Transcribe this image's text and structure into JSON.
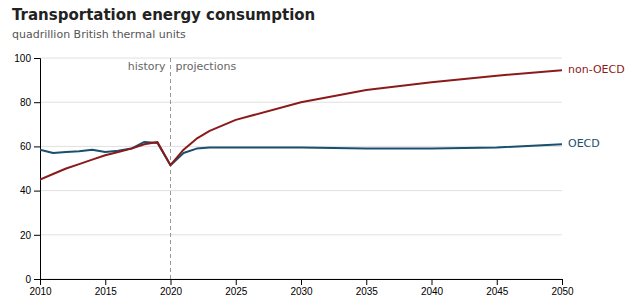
{
  "chart_data": {
    "type": "line",
    "title": "Transportation energy consumption",
    "subtitle": "quadrillion British thermal units",
    "x": [
      2010,
      2011,
      2012,
      2013,
      2014,
      2015,
      2016,
      2017,
      2018,
      2019,
      2020,
      2021,
      2022,
      2023,
      2024,
      2025,
      2030,
      2035,
      2040,
      2045,
      2050
    ],
    "series": [
      {
        "name": "OECD",
        "color": "#1a4f6e",
        "values": [
          58.5,
          57.0,
          57.5,
          57.8,
          58.5,
          57.5,
          58.0,
          59.0,
          62.0,
          61.5,
          51.5,
          57.0,
          59.0,
          59.5,
          59.5,
          59.5,
          59.5,
          59.0,
          59.0,
          59.5,
          61.0
        ]
      },
      {
        "name": "non-OECD",
        "color": "#8b1a1a",
        "values": [
          45.0,
          47.5,
          50.0,
          52.0,
          54.0,
          56.0,
          57.5,
          59.0,
          61.0,
          62.0,
          51.5,
          58.5,
          63.5,
          67.0,
          69.5,
          72.0,
          80.0,
          85.5,
          89.0,
          92.0,
          94.5
        ]
      }
    ],
    "xlim": [
      2010,
      2050
    ],
    "ylim": [
      0,
      100
    ],
    "xticks": [
      2010,
      2015,
      2020,
      2025,
      2030,
      2035,
      2040,
      2045,
      2050
    ],
    "yticks": [
      0,
      20,
      40,
      60,
      80,
      100
    ],
    "grid": true,
    "divider": {
      "x": 2020,
      "labels": [
        "history",
        "projections"
      ]
    }
  }
}
